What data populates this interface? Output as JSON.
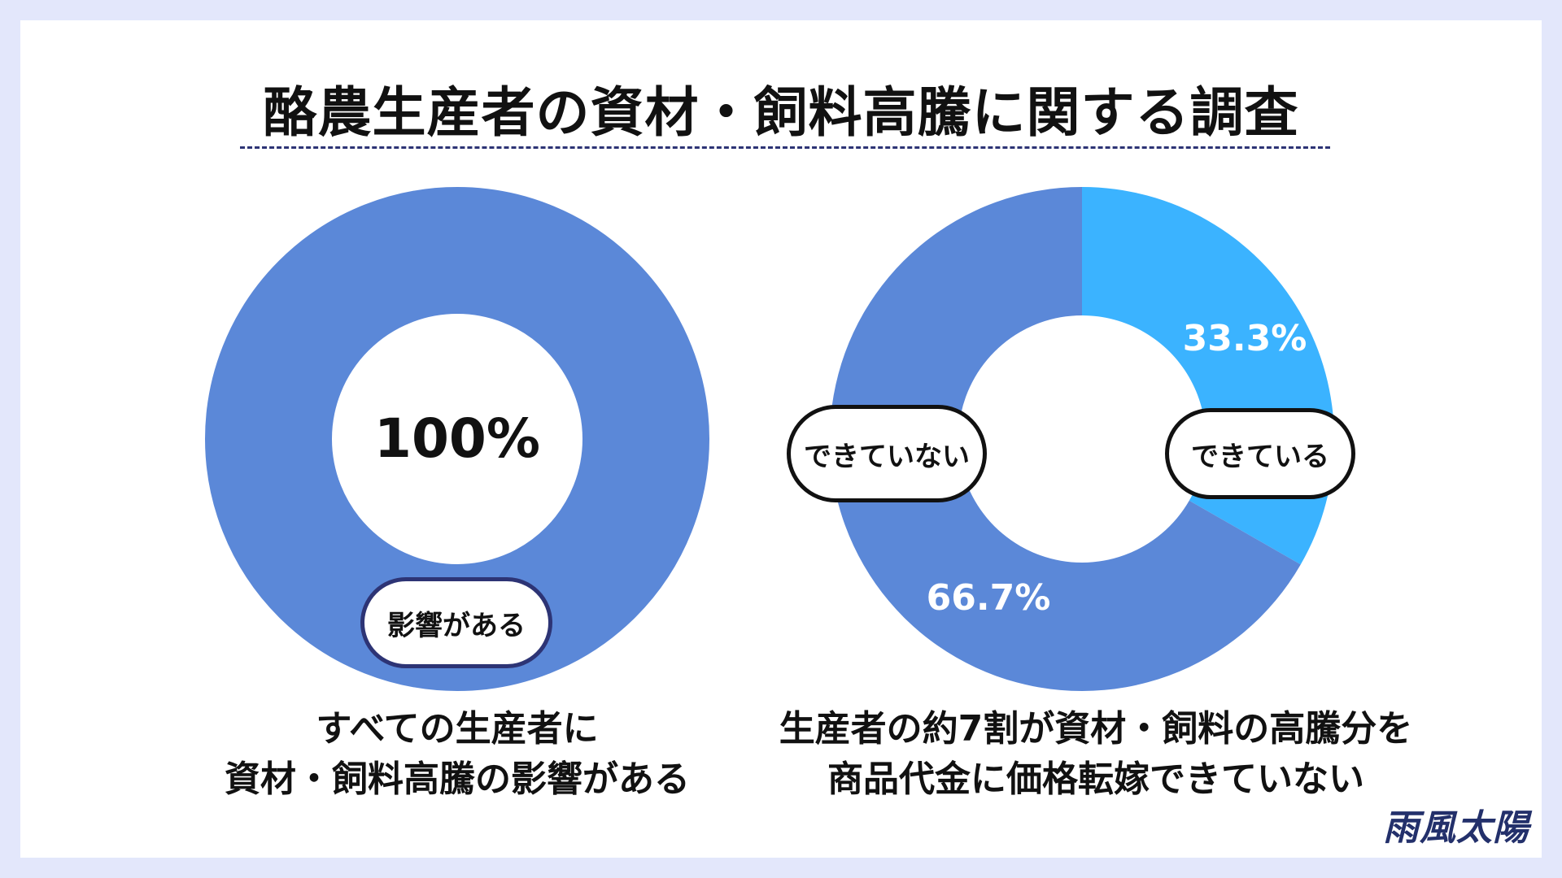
{
  "title": "酪農生産者の資材・飼料高騰に関する調査",
  "colors": {
    "primary": "#5b88d8",
    "accent": "#3bb3ff",
    "navy": "#2d3475"
  },
  "chart_data": [
    {
      "type": "pie",
      "donut": true,
      "slices": [
        {
          "label": "影響がある",
          "value": 100,
          "value_label": "100%",
          "color": "#5b88d8"
        }
      ],
      "caption_lines": [
        "すべての生産者に",
        "資材・飼料高騰の影響がある"
      ]
    },
    {
      "type": "pie",
      "donut": true,
      "slices": [
        {
          "label": "できている",
          "value": 33.3,
          "value_label": "33.3%",
          "color": "#3bb3ff"
        },
        {
          "label": "できていない",
          "value": 66.7,
          "value_label": "66.7%",
          "color": "#5b88d8"
        }
      ],
      "caption_lines": [
        "生産者の約7割が資材・飼料の高騰分を",
        "商品代金に価格転嫁できていない"
      ]
    }
  ],
  "logo": "雨風太陽"
}
